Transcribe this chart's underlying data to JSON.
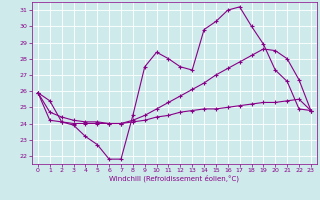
{
  "xlabel": "Windchill (Refroidissement éolien,°C)",
  "x_ticks": [
    0,
    1,
    2,
    3,
    4,
    5,
    6,
    7,
    8,
    9,
    10,
    11,
    12,
    13,
    14,
    15,
    16,
    17,
    18,
    19,
    20,
    21,
    22,
    23
  ],
  "ylim": [
    21.5,
    31.5
  ],
  "yticks": [
    22,
    23,
    24,
    25,
    26,
    27,
    28,
    29,
    30,
    31
  ],
  "bg_color": "#ceeaea",
  "line_color": "#880088",
  "grid_color": "#ffffff",
  "lines": [
    {
      "x": [
        0,
        1,
        2,
        3,
        4,
        5,
        6,
        7,
        8,
        9,
        10,
        11,
        12,
        13,
        14,
        15,
        16,
        17,
        18,
        19,
        20,
        21,
        22,
        23
      ],
      "y": [
        25.9,
        25.4,
        24.1,
        23.9,
        23.2,
        22.7,
        21.8,
        21.8,
        24.5,
        27.5,
        28.4,
        28.0,
        27.5,
        27.3,
        29.8,
        30.3,
        31.0,
        31.2,
        30.0,
        28.9,
        27.3,
        26.6,
        24.9,
        24.8
      ]
    },
    {
      "x": [
        0,
        1,
        2,
        3,
        4,
        5,
        6,
        7,
        8,
        9,
        10,
        11,
        12,
        13,
        14,
        15,
        16,
        17,
        18,
        19,
        20,
        21,
        22,
        23
      ],
      "y": [
        25.9,
        24.2,
        24.1,
        24.0,
        24.0,
        24.0,
        24.0,
        24.0,
        24.1,
        24.2,
        24.4,
        24.5,
        24.7,
        24.8,
        24.9,
        24.9,
        25.0,
        25.1,
        25.2,
        25.3,
        25.3,
        25.4,
        25.5,
        24.8
      ]
    },
    {
      "x": [
        0,
        1,
        2,
        3,
        4,
        5,
        6,
        7,
        8,
        9,
        10,
        11,
        12,
        13,
        14,
        15,
        16,
        17,
        18,
        19,
        20,
        21,
        22,
        23
      ],
      "y": [
        25.9,
        24.7,
        24.4,
        24.2,
        24.1,
        24.1,
        24.0,
        24.0,
        24.2,
        24.5,
        24.9,
        25.3,
        25.7,
        26.1,
        26.5,
        27.0,
        27.4,
        27.8,
        28.2,
        28.6,
        28.5,
        28.0,
        26.7,
        24.8
      ]
    }
  ]
}
